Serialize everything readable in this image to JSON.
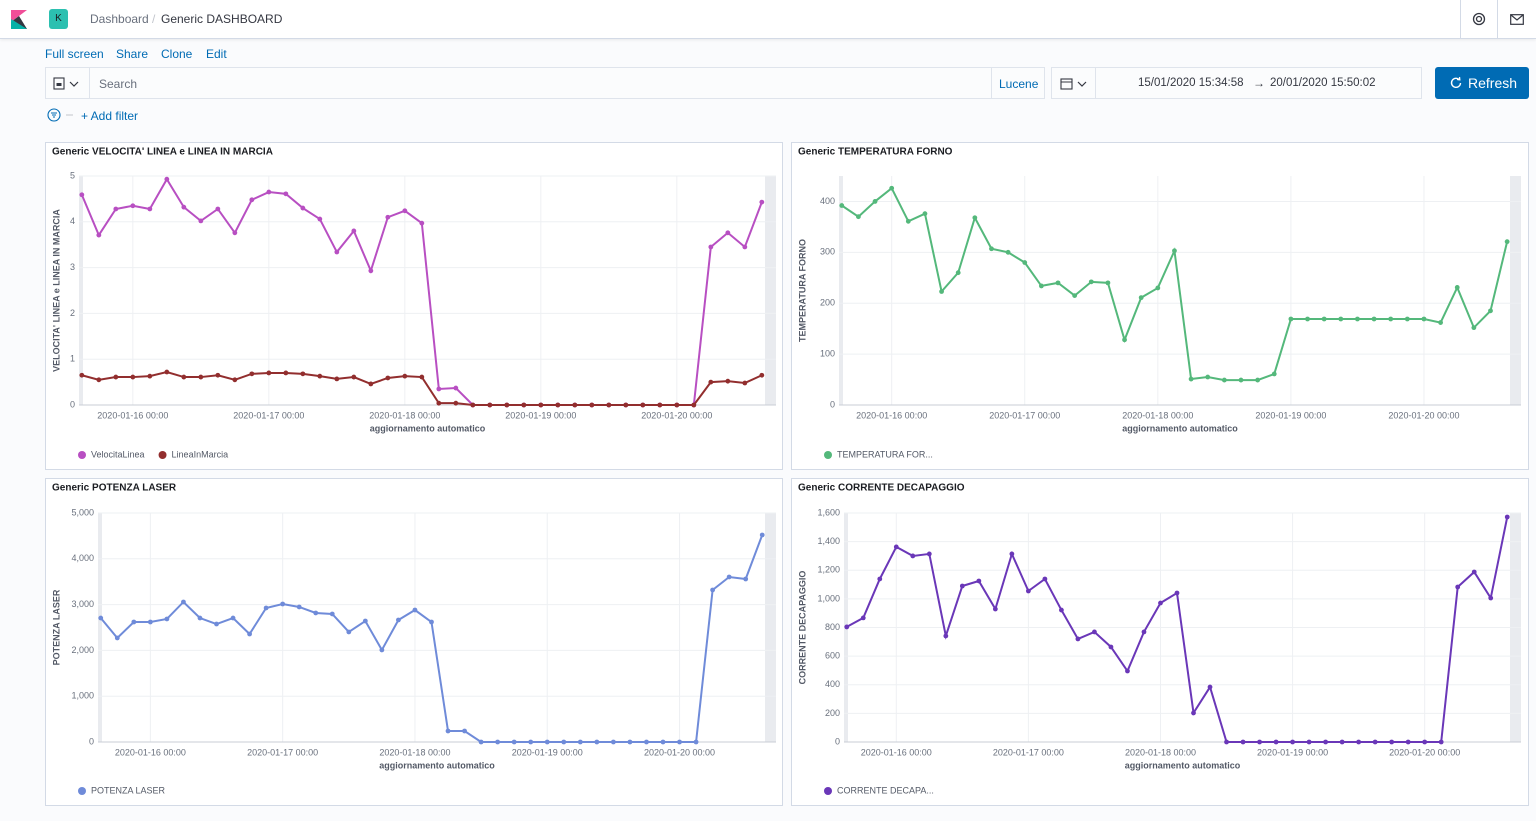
{
  "header": {
    "app_icon": "K",
    "breadcrumbs": [
      "Dashboard",
      "Generic DASHBOARD"
    ]
  },
  "menu": [
    "Full screen",
    "Share",
    "Clone",
    "Edit"
  ],
  "query": {
    "placeholder": "Search",
    "language": "Lucene",
    "time_from": "15/01/2020 15:34:58",
    "time_to": "20/01/2020 15:50:02",
    "refresh": "Refresh",
    "add_filter": "+ Add filter"
  },
  "chart_data": [
    {
      "type": "line",
      "title": "Generic VELOCITA' LINEA e LINEA IN MARCIA",
      "xlabel": "aggiornamento automatico",
      "ylabel": "VELOCITA' LINEA e LINEA IN MARCIA",
      "x": [
        "2020-01-15 15:00",
        "2020-01-15 18:00",
        "2020-01-15 21:00",
        "2020-01-16 00:00",
        "2020-01-16 03:00",
        "2020-01-16 06:00",
        "2020-01-16 09:00",
        "2020-01-16 12:00",
        "2020-01-16 15:00",
        "2020-01-16 18:00",
        "2020-01-16 21:00",
        "2020-01-17 00:00",
        "2020-01-17 03:00",
        "2020-01-17 06:00",
        "2020-01-17 09:00",
        "2020-01-17 12:00",
        "2020-01-17 15:00",
        "2020-01-17 18:00",
        "2020-01-17 21:00",
        "2020-01-18 00:00",
        "2020-01-18 03:00",
        "2020-01-18 06:00",
        "2020-01-18 09:00",
        "2020-01-18 12:00",
        "2020-01-18 15:00",
        "2020-01-18 18:00",
        "2020-01-18 21:00",
        "2020-01-19 00:00",
        "2020-01-19 03:00",
        "2020-01-19 06:00",
        "2020-01-19 09:00",
        "2020-01-19 12:00",
        "2020-01-19 15:00",
        "2020-01-19 18:00",
        "2020-01-19 21:00",
        "2020-01-20 00:00",
        "2020-01-20 03:00",
        "2020-01-20 06:00",
        "2020-01-20 09:00",
        "2020-01-20 12:00",
        "2020-01-20 15:00"
      ],
      "xlim": [
        "2020-01-15 14:30",
        "2020-01-20 17:30"
      ],
      "xticks": [
        "2020-01-16 00:00",
        "2020-01-17 00:00",
        "2020-01-18 00:00",
        "2020-01-19 00:00",
        "2020-01-20 00:00"
      ],
      "ylim": [
        0,
        5
      ],
      "yticks": [
        0,
        1,
        2,
        3,
        4,
        5
      ],
      "grid": true,
      "legend": "bottom-left",
      "series": [
        {
          "name": "VelocitaLinea",
          "color": "#b84fc2",
          "values": [
            4.59,
            3.71,
            4.28,
            4.35,
            4.28,
            4.93,
            4.32,
            4.02,
            4.28,
            3.76,
            4.48,
            4.65,
            4.61,
            4.3,
            4.06,
            3.34,
            3.8,
            2.93,
            4.1,
            4.24,
            3.97,
            0.35,
            0.37,
            0,
            0,
            0,
            0,
            0,
            0,
            0,
            0,
            0,
            0,
            0,
            0,
            0,
            0,
            3.45,
            3.76,
            3.45,
            4.43
          ]
        },
        {
          "name": "LineaInMarcia",
          "color": "#922e2e",
          "values": [
            0.65,
            0.55,
            0.61,
            0.61,
            0.63,
            0.72,
            0.61,
            0.61,
            0.65,
            0.55,
            0.68,
            0.7,
            0.7,
            0.68,
            0.63,
            0.57,
            0.61,
            0.46,
            0.59,
            0.63,
            0.61,
            0.04,
            0.04,
            0,
            0,
            0,
            0,
            0,
            0,
            0,
            0,
            0,
            0,
            0,
            0,
            0,
            0,
            0.5,
            0.52,
            0.48,
            0.65
          ]
        }
      ]
    },
    {
      "type": "line",
      "title": "Generic TEMPERATURA FORNO",
      "xlabel": "aggiornamento automatico",
      "ylabel": "TEMPERATURA FORNO",
      "x": [
        "2020-01-15 15:00",
        "2020-01-15 18:00",
        "2020-01-15 21:00",
        "2020-01-16 00:00",
        "2020-01-16 03:00",
        "2020-01-16 06:00",
        "2020-01-16 09:00",
        "2020-01-16 12:00",
        "2020-01-16 15:00",
        "2020-01-16 18:00",
        "2020-01-16 21:00",
        "2020-01-17 00:00",
        "2020-01-17 03:00",
        "2020-01-17 06:00",
        "2020-01-17 09:00",
        "2020-01-17 12:00",
        "2020-01-17 15:00",
        "2020-01-17 18:00",
        "2020-01-17 21:00",
        "2020-01-18 00:00",
        "2020-01-18 03:00",
        "2020-01-18 06:00",
        "2020-01-18 09:00",
        "2020-01-18 12:00",
        "2020-01-18 15:00",
        "2020-01-18 18:00",
        "2020-01-18 21:00",
        "2020-01-19 00:00",
        "2020-01-19 03:00",
        "2020-01-19 06:00",
        "2020-01-19 09:00",
        "2020-01-19 12:00",
        "2020-01-19 15:00",
        "2020-01-19 18:00",
        "2020-01-19 21:00",
        "2020-01-20 00:00",
        "2020-01-20 03:00",
        "2020-01-20 06:00",
        "2020-01-20 09:00",
        "2020-01-20 12:00",
        "2020-01-20 15:00"
      ],
      "xlim": [
        "2020-01-15 14:30",
        "2020-01-20 17:30"
      ],
      "xticks": [
        "2020-01-16 00:00",
        "2020-01-17 00:00",
        "2020-01-18 00:00",
        "2020-01-19 00:00",
        "2020-01-20 00:00"
      ],
      "ylim": [
        0,
        450
      ],
      "yticks": [
        0,
        100,
        200,
        300,
        400
      ],
      "grid": true,
      "legend": "bottom-left",
      "series": [
        {
          "name": "TEMPERATURA FOR...",
          "color": "#54b87b",
          "values": [
            392,
            370,
            400,
            426,
            361,
            376,
            223,
            260,
            368,
            307,
            300,
            280,
            234,
            240,
            215,
            242,
            240,
            128,
            211,
            230,
            303,
            51,
            55,
            49,
            49,
            49,
            61,
            169,
            169,
            169,
            169,
            169,
            169,
            169,
            169,
            169,
            162,
            231,
            152,
            185,
            321
          ]
        }
      ]
    },
    {
      "type": "line",
      "title": "Generic POTENZA LASER",
      "xlabel": "aggiornamento automatico",
      "ylabel": "POTENZA LASER",
      "x": [
        "2020-01-15 15:00",
        "2020-01-15 18:00",
        "2020-01-15 21:00",
        "2020-01-16 00:00",
        "2020-01-16 03:00",
        "2020-01-16 06:00",
        "2020-01-16 09:00",
        "2020-01-16 12:00",
        "2020-01-16 15:00",
        "2020-01-16 18:00",
        "2020-01-16 21:00",
        "2020-01-17 00:00",
        "2020-01-17 03:00",
        "2020-01-17 06:00",
        "2020-01-17 09:00",
        "2020-01-17 12:00",
        "2020-01-17 15:00",
        "2020-01-17 18:00",
        "2020-01-17 21:00",
        "2020-01-18 00:00",
        "2020-01-18 03:00",
        "2020-01-18 06:00",
        "2020-01-18 09:00",
        "2020-01-18 12:00",
        "2020-01-18 15:00",
        "2020-01-18 18:00",
        "2020-01-18 21:00",
        "2020-01-19 00:00",
        "2020-01-19 03:00",
        "2020-01-19 06:00",
        "2020-01-19 09:00",
        "2020-01-19 12:00",
        "2020-01-19 15:00",
        "2020-01-19 18:00",
        "2020-01-19 21:00",
        "2020-01-20 00:00",
        "2020-01-20 03:00",
        "2020-01-20 06:00",
        "2020-01-20 09:00",
        "2020-01-20 12:00",
        "2020-01-20 15:00"
      ],
      "xlim": [
        "2020-01-15 14:30",
        "2020-01-20 17:30"
      ],
      "xticks": [
        "2020-01-16 00:00",
        "2020-01-17 00:00",
        "2020-01-18 00:00",
        "2020-01-19 00:00",
        "2020-01-20 00:00"
      ],
      "ylim": [
        0,
        5000
      ],
      "yticks": [
        0,
        {
          "value": 1000,
          "label": "1,000"
        },
        {
          "value": 2000,
          "label": "2,000"
        },
        {
          "value": 3000,
          "label": "3,000"
        },
        {
          "value": 4000,
          "label": "4,000"
        },
        {
          "value": 5000,
          "label": "5,000"
        }
      ],
      "grid": true,
      "legend": "bottom-left",
      "series": [
        {
          "name": "POTENZA LASER",
          "color": "#6f8bd9",
          "values": [
            2707,
            2271,
            2620,
            2620,
            2686,
            3057,
            2707,
            2576,
            2707,
            2358,
            2926,
            3013,
            2948,
            2817,
            2795,
            2402,
            2642,
            2009,
            2664,
            2882,
            2620,
            240,
            240,
            0,
            0,
            0,
            0,
            0,
            0,
            0,
            0,
            0,
            0,
            0,
            0,
            0,
            0,
            3319,
            3603,
            3559,
            4520
          ]
        }
      ]
    },
    {
      "type": "line",
      "title": "Generic CORRENTE DECAPAGGIO",
      "xlabel": "aggiornamento automatico",
      "ylabel": "CORRENTE DECAPAGGIO",
      "x": [
        "2020-01-15 15:00",
        "2020-01-15 18:00",
        "2020-01-15 21:00",
        "2020-01-16 00:00",
        "2020-01-16 03:00",
        "2020-01-16 06:00",
        "2020-01-16 09:00",
        "2020-01-16 12:00",
        "2020-01-16 15:00",
        "2020-01-16 18:00",
        "2020-01-16 21:00",
        "2020-01-17 00:00",
        "2020-01-17 03:00",
        "2020-01-17 06:00",
        "2020-01-17 09:00",
        "2020-01-17 12:00",
        "2020-01-17 15:00",
        "2020-01-17 18:00",
        "2020-01-17 21:00",
        "2020-01-18 00:00",
        "2020-01-18 03:00",
        "2020-01-18 06:00",
        "2020-01-18 09:00",
        "2020-01-18 12:00",
        "2020-01-18 15:00",
        "2020-01-18 18:00",
        "2020-01-18 21:00",
        "2020-01-19 00:00",
        "2020-01-19 03:00",
        "2020-01-19 06:00",
        "2020-01-19 09:00",
        "2020-01-19 12:00",
        "2020-01-19 15:00",
        "2020-01-19 18:00",
        "2020-01-19 21:00",
        "2020-01-20 00:00",
        "2020-01-20 03:00",
        "2020-01-20 06:00",
        "2020-01-20 09:00",
        "2020-01-20 12:00",
        "2020-01-20 15:00"
      ],
      "xlim": [
        "2020-01-15 14:30",
        "2020-01-20 17:30"
      ],
      "xticks": [
        "2020-01-16 00:00",
        "2020-01-17 00:00",
        "2020-01-18 00:00",
        "2020-01-19 00:00",
        "2020-01-20 00:00"
      ],
      "ylim": [
        0,
        1600
      ],
      "yticks": [
        0,
        200,
        400,
        600,
        800,
        {
          "value": 1000,
          "label": "1,000"
        },
        {
          "value": 1200,
          "label": "1,200"
        },
        {
          "value": 1400,
          "label": "1,400"
        },
        {
          "value": 1600,
          "label": "1,600"
        }
      ],
      "grid": true,
      "legend": "bottom-left",
      "series": [
        {
          "name": "CORRENTE DECAPA...",
          "color": "#6a37b8",
          "values": [
            804,
            867,
            1139,
            1363,
            1300,
            1314,
            741,
            1090,
            1125,
            929,
            1314,
            1055,
            1139,
            922,
            720,
            769,
            664,
            496,
            769,
            971,
            1041,
            203,
            384,
            0,
            0,
            0,
            0,
            0,
            0,
            0,
            0,
            0,
            0,
            0,
            0,
            0,
            0,
            1083,
            1188,
            1006,
            1572
          ]
        }
      ]
    }
  ]
}
